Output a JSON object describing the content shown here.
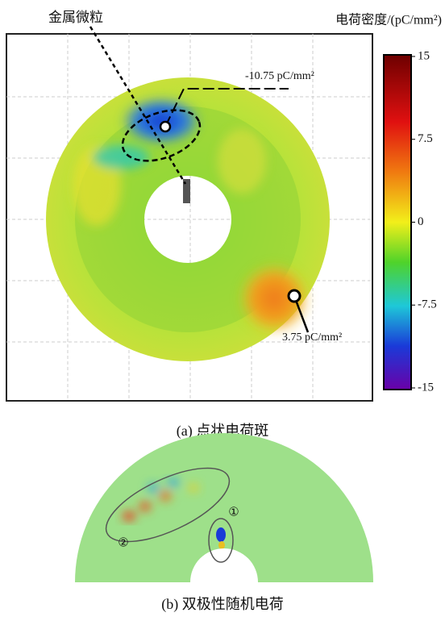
{
  "panel_a": {
    "particle_label": "金属微粒",
    "colorbar_title": "电荷密度/(pC/mm²)",
    "colorbar_ticks": [
      15,
      7.5,
      0,
      -7.5,
      -15
    ],
    "min_label": "-10.75 pC/mm²",
    "max_label": "3.75 pC/mm²",
    "caption": "(a) 点状电荷斑"
  },
  "panel_b": {
    "marker_1": "①",
    "marker_2": "②",
    "caption": "(b) 双极性随机电荷"
  }
}
